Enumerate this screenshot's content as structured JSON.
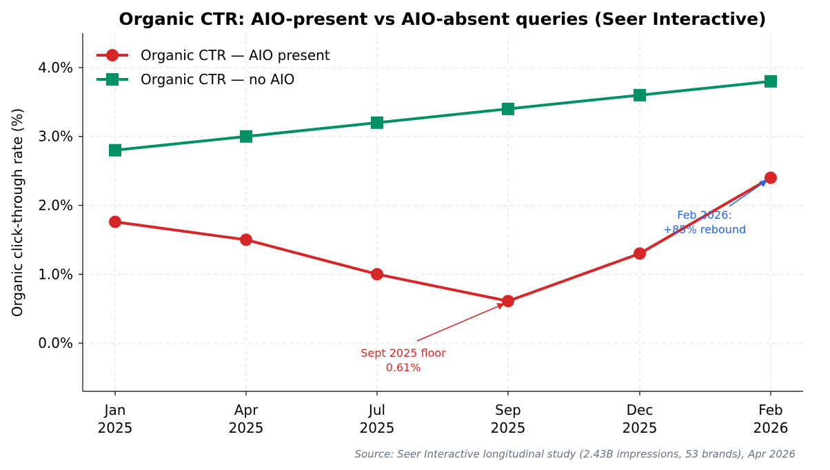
{
  "chart_data": {
    "type": "line",
    "title": "Organic CTR: AIO-present vs AIO-absent queries (Seer Interactive)",
    "xlabel": "",
    "ylabel": "Organic click-through rate (%)",
    "categories": [
      "Jan\n2025",
      "Apr\n2025",
      "Jul\n2025",
      "Sep\n2025",
      "Dec\n2025",
      "Feb\n2026"
    ],
    "ylim": [
      -0.7,
      4.5
    ],
    "yticks": [
      0.0,
      1.0,
      2.0,
      3.0,
      4.0
    ],
    "ytick_labels": [
      "0.0%",
      "1.0%",
      "2.0%",
      "3.0%",
      "4.0%"
    ],
    "grid": true,
    "legend_position": "top-left",
    "series": [
      {
        "name": "Organic CTR — AIO present",
        "values": [
          1.76,
          1.5,
          1.0,
          0.61,
          1.3,
          2.4
        ],
        "color": "#d62728",
        "marker": "circle"
      },
      {
        "name": "Organic CTR — no AIO",
        "values": [
          2.8,
          3.0,
          3.2,
          3.4,
          3.6,
          3.8
        ],
        "color": "#009066",
        "marker": "square"
      }
    ],
    "annotations": [
      {
        "text": "Sept 2025 floor\n0.61%",
        "target_index": 3,
        "series_index": 0,
        "color": "#d62728"
      },
      {
        "text": "Feb 2026:\n+85% rebound",
        "target_index": 5,
        "series_index": 0,
        "color": "#2563eb"
      }
    ],
    "source": "Source: Seer Interactive longitudinal study (2.43B impressions, 53 brands), Apr 2026"
  }
}
